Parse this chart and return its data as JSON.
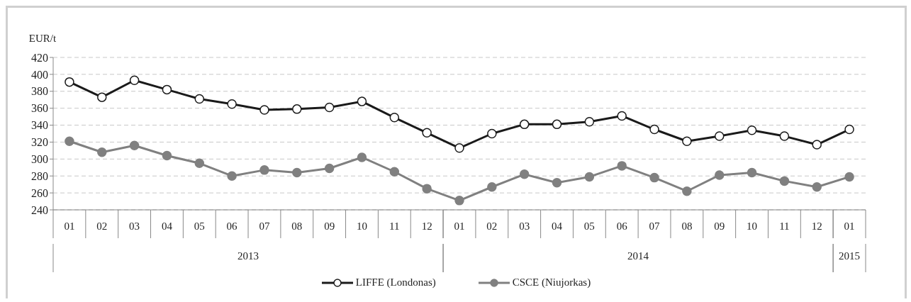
{
  "chart_data": {
    "type": "line",
    "ylabel": "EUR/t",
    "categories": [
      "01",
      "02",
      "03",
      "04",
      "05",
      "06",
      "07",
      "08",
      "09",
      "10",
      "11",
      "12",
      "01",
      "02",
      "03",
      "04",
      "05",
      "06",
      "07",
      "08",
      "09",
      "10",
      "11",
      "12",
      "01"
    ],
    "annotations": [
      "2013",
      "2014",
      "2015"
    ],
    "series": [
      {
        "name": "LIFFE (Londonas)",
        "color": "#1a1a1a",
        "values": [
          391,
          373,
          393,
          382,
          371,
          365,
          358,
          359,
          361,
          368,
          349,
          331,
          313,
          330,
          341,
          341,
          344,
          351,
          335,
          321,
          327,
          334,
          327,
          317,
          335
        ]
      },
      {
        "name": "CSCE (Niujorkas)",
        "color": "#808080",
        "values": [
          321,
          308,
          316,
          304,
          295,
          280,
          287,
          284,
          289,
          302,
          285,
          265,
          251,
          267,
          282,
          272,
          279,
          292,
          278,
          262,
          281,
          284,
          274,
          267,
          279
        ]
      }
    ],
    "ylim": [
      240,
      420
    ],
    "yticks": [
      240,
      260,
      280,
      300,
      320,
      340,
      360,
      380,
      400,
      420
    ],
    "grid": "y",
    "legend": "bottom",
    "marker": "circle",
    "line_style": "solid"
  }
}
